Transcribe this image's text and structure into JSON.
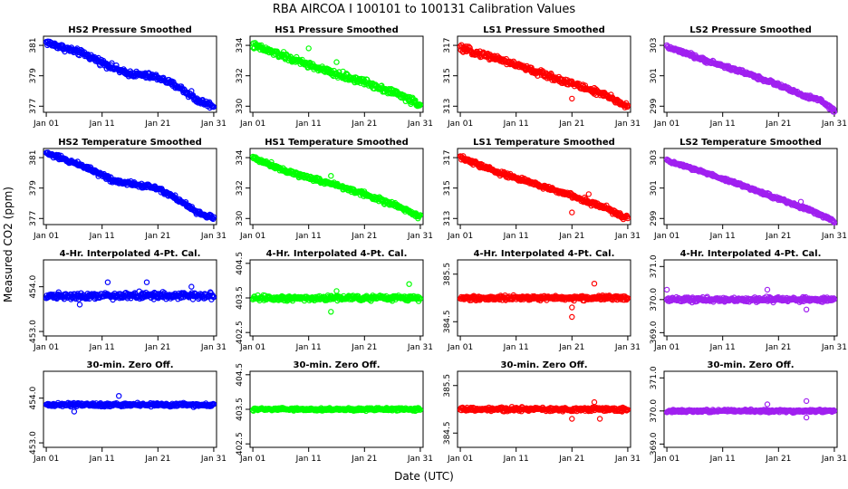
{
  "title": "RBA   AIRCOA I   100101 to 100131   Calibration Values",
  "xlabel": "Date (UTC)",
  "ylabel": "Measured CO2 (ppm)",
  "x_ticks": [
    {
      "day": 1,
      "label": "Jan 01"
    },
    {
      "day": 11,
      "label": "Jan 11"
    },
    {
      "day": 21,
      "label": "Jan 21"
    },
    {
      "day": 31,
      "label": "Jan 31"
    }
  ],
  "xlim": [
    0.5,
    31.5
  ],
  "chart_data": [
    {
      "type": "scatter",
      "row": 0,
      "col": 0,
      "title": "HS2 Pressure Smoothed",
      "color": "#0000ff",
      "ylim": [
        376.6,
        381.6
      ],
      "yticks": [
        "377",
        "379",
        "381"
      ],
      "ytick_values": [
        377,
        379,
        381
      ],
      "trend": [
        [
          1,
          381.2
        ],
        [
          8,
          380.4
        ],
        [
          15,
          379.2
        ],
        [
          21,
          378.9
        ],
        [
          25,
          378.2
        ],
        [
          28,
          377.4
        ],
        [
          31,
          377.0
        ]
      ],
      "noise": 0.2,
      "outliers": [
        [
          27,
          378.0
        ]
      ]
    },
    {
      "type": "scatter",
      "row": 0,
      "col": 1,
      "title": "HS1 Pressure Smoothed",
      "color": "#00ff00",
      "ylim": [
        329.6,
        334.6
      ],
      "yticks": [
        "330",
        "332",
        "334"
      ],
      "ytick_values": [
        330,
        332,
        334
      ],
      "trend": [
        [
          1,
          334.0
        ],
        [
          8,
          333.1
        ],
        [
          15,
          332.2
        ],
        [
          21,
          331.6
        ],
        [
          27,
          330.8
        ],
        [
          31,
          330.1
        ]
      ],
      "noise": 0.22,
      "outliers": [
        [
          11,
          333.8
        ],
        [
          16,
          332.9
        ]
      ]
    },
    {
      "type": "scatter",
      "row": 0,
      "col": 2,
      "title": "LS1 Pressure Smoothed",
      "color": "#ff0000",
      "ylim": [
        312.6,
        317.6
      ],
      "yticks": [
        "313",
        "315",
        "317"
      ],
      "ytick_values": [
        313,
        315,
        317
      ],
      "trend": [
        [
          1,
          316.8
        ],
        [
          8,
          316.1
        ],
        [
          15,
          315.2
        ],
        [
          21,
          314.5
        ],
        [
          27,
          313.7
        ],
        [
          31,
          313.0
        ]
      ],
      "noise": 0.2,
      "outliers": [
        [
          21,
          313.5
        ],
        [
          25,
          314.2
        ]
      ]
    },
    {
      "type": "scatter",
      "row": 0,
      "col": 3,
      "title": "LS2 Pressure Smoothed",
      "color": "#a020f0",
      "ylim": [
        298.6,
        303.6
      ],
      "yticks": [
        "299",
        "301",
        "303"
      ],
      "ytick_values": [
        299,
        301,
        303
      ],
      "trend": [
        [
          1,
          302.9
        ],
        [
          8,
          302.0
        ],
        [
          15,
          301.2
        ],
        [
          21,
          300.4
        ],
        [
          26,
          299.6
        ],
        [
          28,
          299.5
        ],
        [
          31,
          298.7
        ]
      ],
      "noise": 0.12,
      "outliers": []
    },
    {
      "type": "scatter",
      "row": 1,
      "col": 0,
      "title": "HS2 Temperature Smoothed",
      "color": "#0000ff",
      "ylim": [
        376.6,
        381.6
      ],
      "yticks": [
        "377",
        "379",
        "381"
      ],
      "ytick_values": [
        377,
        379,
        381
      ],
      "trend": [
        [
          1,
          381.3
        ],
        [
          8,
          380.4
        ],
        [
          13,
          379.5
        ],
        [
          21,
          379.0
        ],
        [
          24,
          378.4
        ],
        [
          28,
          377.4
        ],
        [
          31,
          377.0
        ]
      ],
      "noise": 0.15,
      "outliers": [
        [
          12,
          379.8
        ]
      ]
    },
    {
      "type": "scatter",
      "row": 1,
      "col": 1,
      "title": "HS1 Temperature Smoothed",
      "color": "#00ff00",
      "ylim": [
        329.6,
        334.6
      ],
      "yticks": [
        "330",
        "332",
        "334"
      ],
      "ytick_values": [
        330,
        332,
        334
      ],
      "trend": [
        [
          1,
          334.0
        ],
        [
          8,
          333.0
        ],
        [
          15,
          332.3
        ],
        [
          21,
          331.6
        ],
        [
          27,
          330.8
        ],
        [
          31,
          330.1
        ]
      ],
      "noise": 0.15,
      "outliers": [
        [
          15,
          332.8
        ]
      ]
    },
    {
      "type": "scatter",
      "row": 1,
      "col": 2,
      "title": "LS1 Temperature Smoothed",
      "color": "#ff0000",
      "ylim": [
        312.6,
        317.6
      ],
      "yticks": [
        "313",
        "315",
        "317"
      ],
      "ytick_values": [
        313,
        315,
        317
      ],
      "trend": [
        [
          1,
          317.0
        ],
        [
          8,
          316.0
        ],
        [
          15,
          315.2
        ],
        [
          21,
          314.5
        ],
        [
          27,
          313.7
        ],
        [
          31,
          313.0
        ]
      ],
      "noise": 0.15,
      "outliers": [
        [
          21,
          313.4
        ],
        [
          24,
          314.6
        ]
      ]
    },
    {
      "type": "scatter",
      "row": 1,
      "col": 3,
      "title": "LS2 Temperature Smoothed",
      "color": "#a020f0",
      "ylim": [
        298.6,
        303.6
      ],
      "yticks": [
        "299",
        "301",
        "303"
      ],
      "ytick_values": [
        299,
        301,
        303
      ],
      "trend": [
        [
          1,
          302.8
        ],
        [
          8,
          302.0
        ],
        [
          15,
          301.1
        ],
        [
          21,
          300.3
        ],
        [
          27,
          299.5
        ],
        [
          31,
          298.8
        ]
      ],
      "noise": 0.1,
      "outliers": [
        [
          25,
          300.1
        ]
      ]
    },
    {
      "type": "scatter",
      "row": 2,
      "col": 0,
      "title": "4-Hr. Interpolated 4-Pt. Cal.",
      "color": "#0000ff",
      "ylim": [
        452.9,
        454.6
      ],
      "yticks": [
        "453.0",
        "454.0"
      ],
      "ytick_values": [
        453.0,
        454.0
      ],
      "trend": [
        [
          1,
          453.8
        ],
        [
          31,
          453.8
        ]
      ],
      "noise": 0.07,
      "outliers": [
        [
          7,
          453.6
        ],
        [
          12,
          454.1
        ],
        [
          19,
          454.1
        ],
        [
          27,
          454.0
        ]
      ]
    },
    {
      "type": "scatter",
      "row": 2,
      "col": 1,
      "title": "4-Hr. Interpolated 4-Pt. Cal.",
      "color": "#00ff00",
      "ylim": [
        402.4,
        404.6
      ],
      "yticks": [
        "402.5",
        "403.5",
        "404.5"
      ],
      "ytick_values": [
        402.5,
        403.5,
        404.5
      ],
      "trend": [
        [
          1,
          403.5
        ],
        [
          31,
          403.5
        ]
      ],
      "noise": 0.08,
      "outliers": [
        [
          15,
          403.1
        ],
        [
          29,
          403.9
        ],
        [
          16,
          403.7
        ]
      ]
    },
    {
      "type": "scatter",
      "row": 2,
      "col": 2,
      "title": "4-Hr. Interpolated 4-Pt. Cal.",
      "color": "#ff0000",
      "ylim": [
        384.2,
        385.8
      ],
      "yticks": [
        "384.5",
        "385.5"
      ],
      "ytick_values": [
        384.5,
        385.5
      ],
      "trend": [
        [
          1,
          385.0
        ],
        [
          31,
          385.0
        ]
      ],
      "noise": 0.05,
      "outliers": [
        [
          21,
          384.6
        ],
        [
          25,
          385.3
        ],
        [
          21,
          384.8
        ]
      ]
    },
    {
      "type": "scatter",
      "row": 2,
      "col": 3,
      "title": "4-Hr. Interpolated 4-Pt. Cal.",
      "color": "#a020f0",
      "ylim": [
        368.9,
        371.2
      ],
      "yticks": [
        "369.0",
        "370.0",
        "371.0"
      ],
      "ytick_values": [
        369.0,
        370.0,
        371.0
      ],
      "trend": [
        [
          1,
          370.0
        ],
        [
          31,
          370.0
        ]
      ],
      "noise": 0.07,
      "outliers": [
        [
          1,
          370.3
        ],
        [
          19,
          370.3
        ],
        [
          26,
          369.7
        ]
      ]
    },
    {
      "type": "scatter",
      "row": 3,
      "col": 0,
      "title": "30-min. Zero Off.",
      "color": "#0000ff",
      "ylim": [
        452.9,
        454.6
      ],
      "yticks": [
        "453.0",
        "454.0"
      ],
      "ytick_values": [
        453.0,
        454.0
      ],
      "trend": [
        [
          1,
          453.85
        ],
        [
          31,
          453.85
        ]
      ],
      "noise": 0.04,
      "outliers": [
        [
          14,
          454.05
        ],
        [
          6,
          453.7
        ]
      ]
    },
    {
      "type": "scatter",
      "row": 3,
      "col": 1,
      "title": "30-min. Zero Off.",
      "color": "#00ff00",
      "ylim": [
        402.4,
        404.6
      ],
      "yticks": [
        "402.5",
        "403.5",
        "404.5"
      ],
      "ytick_values": [
        402.5,
        403.5,
        404.5
      ],
      "trend": [
        [
          1,
          403.5
        ],
        [
          31,
          403.5
        ]
      ],
      "noise": 0.04,
      "outliers": []
    },
    {
      "type": "scatter",
      "row": 3,
      "col": 2,
      "title": "30-min. Zero Off.",
      "color": "#ff0000",
      "ylim": [
        384.2,
        385.8
      ],
      "yticks": [
        "384.5",
        "385.5"
      ],
      "ytick_values": [
        384.5,
        385.5
      ],
      "trend": [
        [
          1,
          385.0
        ],
        [
          31,
          385.0
        ]
      ],
      "noise": 0.04,
      "outliers": [
        [
          21,
          384.8
        ],
        [
          26,
          384.8
        ],
        [
          25,
          385.15
        ]
      ]
    },
    {
      "type": "scatter",
      "row": 3,
      "col": 3,
      "title": "30-min. Zero Off.",
      "color": "#a020f0",
      "ylim": [
        368.9,
        371.2
      ],
      "yticks": [
        "369.0",
        "370.0",
        "371.0"
      ],
      "ytick_values": [
        369.0,
        370.0,
        371.0
      ],
      "trend": [
        [
          1,
          370.0
        ],
        [
          31,
          370.0
        ]
      ],
      "noise": 0.04,
      "outliers": [
        [
          19,
          370.2
        ],
        [
          26,
          370.3
        ],
        [
          26,
          369.8
        ]
      ]
    }
  ]
}
